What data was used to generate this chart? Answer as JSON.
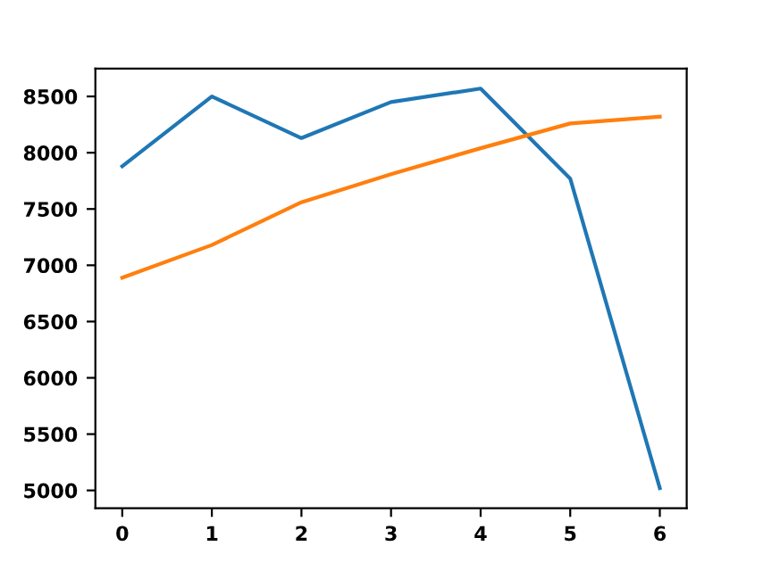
{
  "chart_data": {
    "type": "line",
    "x": [
      0,
      1,
      2,
      3,
      4,
      5,
      6
    ],
    "series": [
      {
        "color": "#1f77b4",
        "values": [
          7880,
          8500,
          8130,
          8450,
          8570,
          7770,
          5020
        ]
      },
      {
        "color": "#ff7f0e",
        "values": [
          6890,
          7180,
          7560,
          7810,
          8040,
          8260,
          8320
        ]
      }
    ],
    "xlim": [
      -0.3,
      6.3
    ],
    "xticks": [
      0,
      1,
      2,
      3,
      4,
      5,
      6
    ],
    "ylim": [
      4842,
      8748
    ],
    "yticks": [
      5000,
      5500,
      6000,
      6500,
      7000,
      7500,
      8000,
      8500
    ],
    "grid": false
  }
}
